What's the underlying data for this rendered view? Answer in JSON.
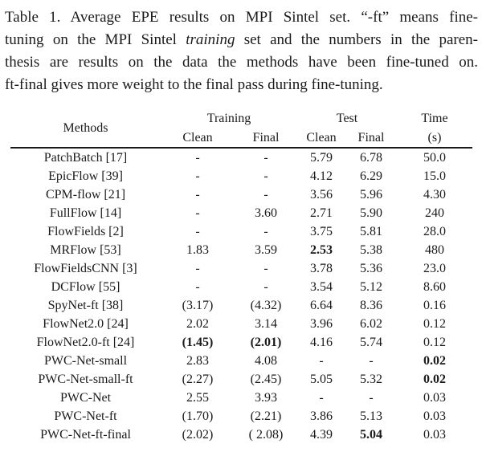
{
  "caption": {
    "line1": "Table 1. Average EPE results on MPI Sintel set. “-ft” means fine-",
    "line2_pre": "tuning on the MPI Sintel ",
    "line2_italic": "training",
    "line2_post": " set and the numbers in the paren-",
    "line3": "thesis are results on the data the methods have been fine-tuned on.",
    "line4": "ft-final gives more weight to the final pass during fine-tuning."
  },
  "table": {
    "header": {
      "methods": "Methods",
      "training": "Training",
      "test": "Test",
      "time": "Time",
      "training_clean": "Clean",
      "training_final": "Final",
      "test_clean": "Clean",
      "test_final": "Final",
      "time_unit": "(s)"
    },
    "rows": [
      {
        "method": "PatchBatch [17]",
        "cells": [
          "-",
          "-",
          "5.79",
          "6.78",
          "50.0"
        ]
      },
      {
        "method": "EpicFlow [39]",
        "cells": [
          "-",
          "-",
          "4.12",
          "6.29",
          "15.0"
        ]
      },
      {
        "method": "CPM-flow [21]",
        "cells": [
          "-",
          "-",
          "3.56",
          "5.96",
          "4.30"
        ]
      },
      {
        "method": "FullFlow [14]",
        "cells": [
          "-",
          "3.60",
          "2.71",
          "5.90",
          "240"
        ]
      },
      {
        "method": "FlowFields [2]",
        "cells": [
          "-",
          "-",
          "3.75",
          "5.81",
          "28.0"
        ]
      },
      {
        "method": "MRFlow [53]",
        "cells": [
          "1.83",
          "3.59",
          {
            "v": "2.53",
            "bold": true
          },
          "5.38",
          "480"
        ]
      },
      {
        "method": "FlowFieldsCNN [3]",
        "cells": [
          "-",
          "-",
          "3.78",
          "5.36",
          "23.0"
        ]
      },
      {
        "method": "DCFlow [55]",
        "cells": [
          "-",
          "-",
          "3.54",
          "5.12",
          "8.60"
        ]
      },
      {
        "method": "SpyNet-ft [38]",
        "cells": [
          "(3.17)",
          "(4.32)",
          "6.64",
          "8.36",
          "0.16"
        ]
      },
      {
        "method": "FlowNet2.0 [24]",
        "cells": [
          "2.02",
          "3.14",
          "3.96",
          "6.02",
          "0.12"
        ]
      },
      {
        "method": "FlowNet2.0-ft [24]",
        "cells": [
          {
            "v": "(1.45)",
            "bold": true
          },
          {
            "v": "(2.01)",
            "bold": true
          },
          "4.16",
          "5.74",
          "0.12"
        ]
      },
      {
        "method": "PWC-Net-small",
        "cells": [
          "2.83",
          "4.08",
          "-",
          "-",
          {
            "v": "0.02",
            "bold": true
          }
        ]
      },
      {
        "method": "PWC-Net-small-ft",
        "cells": [
          "(2.27)",
          "(2.45)",
          "5.05",
          "5.32",
          {
            "v": "0.02",
            "bold": true
          }
        ]
      },
      {
        "method": "PWC-Net",
        "cells": [
          "2.55",
          "3.93",
          "-",
          "-",
          "0.03"
        ]
      },
      {
        "method": "PWC-Net-ft",
        "cells": [
          "(1.70)",
          "(2.21)",
          "3.86",
          "5.13",
          "0.03"
        ]
      },
      {
        "method": "PWC-Net-ft-final",
        "cells": [
          "(2.02)",
          "( 2.08)",
          "4.39",
          {
            "v": "5.04",
            "bold": true
          },
          "0.03"
        ]
      }
    ]
  },
  "colors": {
    "text": "#1a1a1a",
    "background": "#ffffff",
    "rule": "#1a1a1a"
  }
}
